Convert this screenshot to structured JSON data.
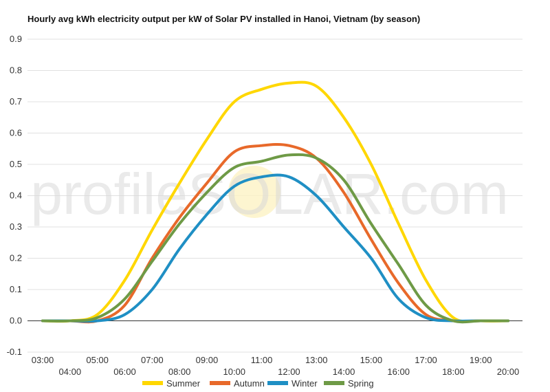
{
  "chart_data": {
    "type": "line",
    "title": "Hourly avg kWh electricity output per kW of Solar PV installed in Hanoi, Vietnam (by season)",
    "xlabel": "",
    "ylabel": "",
    "ylim": [
      -0.1,
      0.9
    ],
    "yticks": [
      "-0.1",
      "0.0",
      "0.1",
      "0.2",
      "0.3",
      "0.4",
      "0.5",
      "0.6",
      "0.7",
      "0.8",
      "0.9"
    ],
    "yticks_values": [
      -0.1,
      0,
      0.1,
      0.2,
      0.3,
      0.4,
      0.5,
      0.6,
      0.7,
      0.8,
      0.9
    ],
    "x": [
      "03:00",
      "04:00",
      "05:00",
      "06:00",
      "07:00",
      "08:00",
      "09:00",
      "10:00",
      "11:00",
      "12:00",
      "13:00",
      "14:00",
      "15:00",
      "16:00",
      "17:00",
      "18:00",
      "19:00",
      "20:00"
    ],
    "grid": true,
    "legend_position": "bottom",
    "series": [
      {
        "name": "Summer",
        "color": "#FFD700",
        "values": [
          0,
          0,
          0.02,
          0.13,
          0.29,
          0.44,
          0.58,
          0.7,
          0.74,
          0.76,
          0.75,
          0.65,
          0.5,
          0.31,
          0.13,
          0.01,
          0,
          0
        ]
      },
      {
        "name": "Autumn",
        "color": "#E8692A",
        "values": [
          0,
          0,
          0,
          0.05,
          0.2,
          0.33,
          0.44,
          0.54,
          0.56,
          0.56,
          0.52,
          0.41,
          0.26,
          0.12,
          0.02,
          0,
          0,
          0
        ]
      },
      {
        "name": "Winter",
        "color": "#1F8FC4",
        "values": [
          0,
          0,
          0,
          0.02,
          0.1,
          0.23,
          0.34,
          0.43,
          0.46,
          0.46,
          0.4,
          0.3,
          0.2,
          0.07,
          0.01,
          0,
          0,
          0
        ]
      },
      {
        "name": "Spring",
        "color": "#6E9A46",
        "values": [
          0,
          0,
          0.01,
          0.07,
          0.19,
          0.31,
          0.41,
          0.49,
          0.51,
          0.53,
          0.52,
          0.45,
          0.31,
          0.18,
          0.05,
          0,
          0,
          0
        ]
      }
    ],
    "watermark": "profileSOLAR.com"
  }
}
